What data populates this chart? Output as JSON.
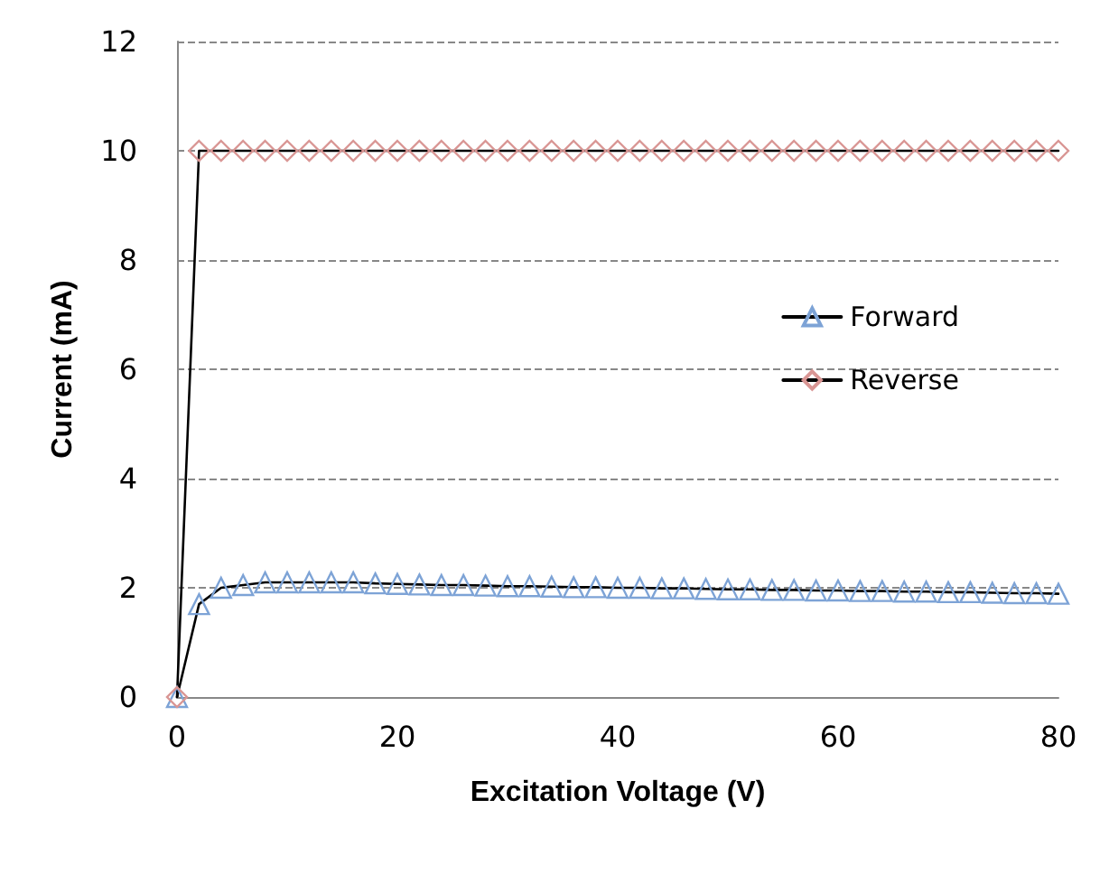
{
  "chart_data": {
    "type": "line",
    "xlabel": "Excitation Voltage (V)",
    "ylabel": "Current (mA)",
    "x": [
      0,
      2,
      4,
      6,
      8,
      10,
      12,
      14,
      16,
      18,
      20,
      22,
      24,
      26,
      28,
      30,
      32,
      34,
      36,
      38,
      40,
      42,
      44,
      46,
      48,
      50,
      52,
      54,
      56,
      58,
      60,
      62,
      64,
      66,
      68,
      70,
      72,
      74,
      76,
      78,
      80
    ],
    "series": [
      {
        "name": "Forward",
        "color": "#7da3d6",
        "marker": "triangle",
        "values": [
          0,
          1.7,
          2.0,
          2.05,
          2.1,
          2.1,
          2.1,
          2.1,
          2.1,
          2.08,
          2.07,
          2.06,
          2.05,
          2.05,
          2.04,
          2.03,
          2.03,
          2.02,
          2.01,
          2.01,
          2.0,
          2.0,
          1.99,
          1.99,
          1.98,
          1.97,
          1.97,
          1.96,
          1.96,
          1.95,
          1.95,
          1.94,
          1.94,
          1.93,
          1.93,
          1.92,
          1.92,
          1.91,
          1.9,
          1.9,
          1.89
        ]
      },
      {
        "name": "Reverse",
        "color": "#d99694",
        "marker": "diamond",
        "values": [
          0,
          10,
          10,
          10,
          10,
          10,
          10,
          10,
          10,
          10,
          10,
          10,
          10,
          10,
          10,
          10,
          10,
          10,
          10,
          10,
          10,
          10,
          10,
          10,
          10,
          10,
          10,
          10,
          10,
          10,
          10,
          10,
          10,
          10,
          10,
          10,
          10,
          10,
          10,
          10,
          10
        ]
      }
    ],
    "xlim": [
      0,
      80
    ],
    "xticks": [
      0,
      20,
      40,
      60,
      80
    ],
    "ylim": [
      0,
      12
    ],
    "yticks": [
      0,
      2,
      4,
      6,
      8,
      10,
      12
    ],
    "grid": "y",
    "legend": "right"
  }
}
